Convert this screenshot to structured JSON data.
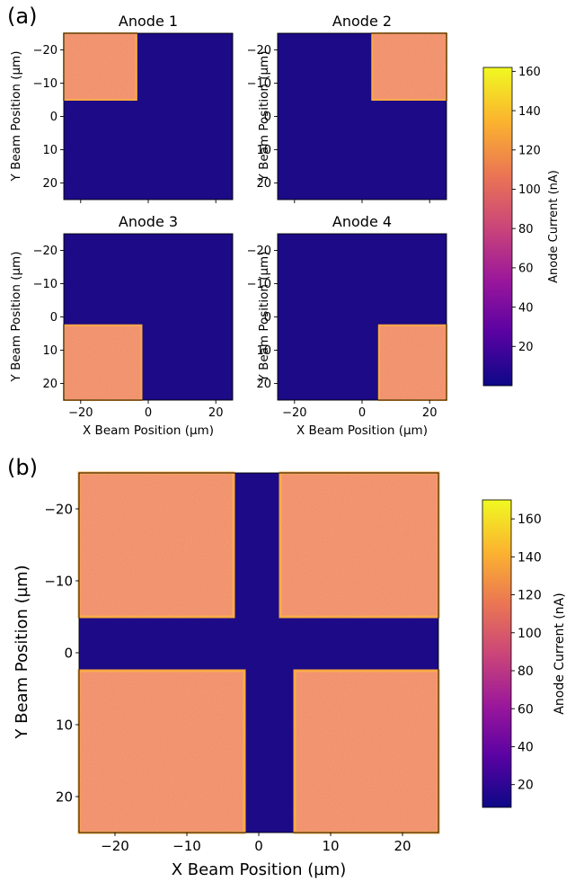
{
  "colors": {
    "low": "#1c0a86",
    "high": "#f0f921",
    "plateau": "#f08a66",
    "edge": "#f9a83c",
    "plasma_stops": [
      "#0d0887",
      "#5b02a3",
      "#9a179b",
      "#cb4678",
      "#eb7852",
      "#fbb32f",
      "#f0f921"
    ]
  },
  "panel_a": {
    "label": "(a)",
    "xlabel": "X Beam Position (µm)",
    "ylabel": "Y Beam Position (µm)",
    "colorbar": {
      "label": "Anode Current (nA)",
      "ticks": [
        "20",
        "40",
        "60",
        "80",
        "100",
        "120",
        "140",
        "160"
      ]
    }
  },
  "panel_b": {
    "label": "(b)",
    "xlabel": "X Beam Position (µm)",
    "ylabel": "Y Beam Position (µm)",
    "colorbar": {
      "label": "Anode Current (nA)",
      "ticks": [
        "20",
        "40",
        "60",
        "80",
        "100",
        "120",
        "140",
        "160"
      ]
    }
  },
  "chart_data": [
    {
      "type": "heatmap",
      "title": "Anode 1",
      "x_range": [
        -25,
        25
      ],
      "y_range": [
        -25,
        25
      ],
      "y_inverted": true,
      "xticks": [
        -20,
        0,
        20
      ],
      "yticks": [
        -20,
        -10,
        0,
        10,
        20
      ],
      "value_range_nA": [
        0,
        162
      ],
      "active_region": {
        "x": [
          -25,
          -3.5
        ],
        "y": [
          -25,
          -5
        ]
      },
      "active_level_nA": 100,
      "background_level_nA": 2
    },
    {
      "type": "heatmap",
      "title": "Anode 2",
      "x_range": [
        -25,
        25
      ],
      "y_range": [
        -25,
        25
      ],
      "y_inverted": true,
      "xticks": [
        -20,
        0,
        20
      ],
      "yticks": [
        -20,
        -10,
        0,
        10,
        20
      ],
      "value_range_nA": [
        0,
        162
      ],
      "active_region": {
        "x": [
          3,
          25
        ],
        "y": [
          -25,
          -5
        ]
      },
      "active_level_nA": 100,
      "background_level_nA": 2
    },
    {
      "type": "heatmap",
      "title": "Anode 3",
      "x_range": [
        -25,
        25
      ],
      "y_range": [
        -25,
        25
      ],
      "y_inverted": true,
      "xticks": [
        -20,
        0,
        20
      ],
      "yticks": [
        -20,
        -10,
        0,
        10,
        20
      ],
      "value_range_nA": [
        0,
        162
      ],
      "active_region": {
        "x": [
          -25,
          -2
        ],
        "y": [
          2.5,
          25
        ]
      },
      "active_level_nA": 100,
      "background_level_nA": 2
    },
    {
      "type": "heatmap",
      "title": "Anode 4",
      "x_range": [
        -25,
        25
      ],
      "y_range": [
        -25,
        25
      ],
      "y_inverted": true,
      "xticks": [
        -20,
        0,
        20
      ],
      "yticks": [
        -20,
        -10,
        0,
        10,
        20
      ],
      "value_range_nA": [
        0,
        162
      ],
      "active_region": {
        "x": [
          5,
          25
        ],
        "y": [
          2.5,
          25
        ]
      },
      "active_level_nA": 100,
      "background_level_nA": 2
    },
    {
      "type": "heatmap",
      "title": "",
      "x_range": [
        -25,
        25
      ],
      "y_range": [
        -25,
        25
      ],
      "y_inverted": true,
      "xticks": [
        -20,
        -10,
        0,
        10,
        20
      ],
      "yticks": [
        -20,
        -10,
        0,
        10,
        20
      ],
      "value_range_nA": [
        8,
        170
      ],
      "active_regions": [
        {
          "x": [
            -25,
            -3.5
          ],
          "y": [
            -25,
            -5
          ]
        },
        {
          "x": [
            3,
            25
          ],
          "y": [
            -25,
            -5
          ]
        },
        {
          "x": [
            -25,
            -2
          ],
          "y": [
            2.5,
            25
          ]
        },
        {
          "x": [
            5,
            25
          ],
          "y": [
            2.5,
            25
          ]
        }
      ],
      "active_level_nA": 100,
      "background_level_nA": 10
    }
  ]
}
